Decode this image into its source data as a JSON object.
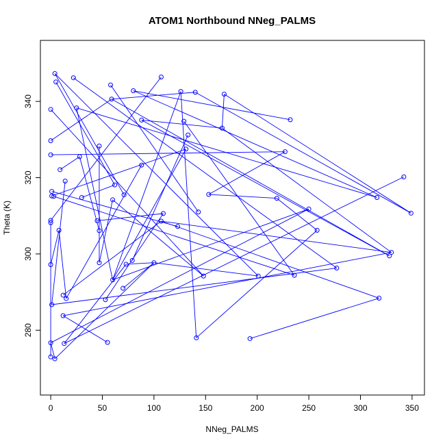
{
  "chart_data": {
    "type": "scatter",
    "title": "ATOM1 Northbound NNeg_PALMS",
    "xlabel": "NNeg_PALMS",
    "ylabel": "Theta (K)",
    "xlim": [
      -10,
      362
    ],
    "ylim": [
      263,
      356
    ],
    "xticks": [
      0,
      50,
      100,
      150,
      200,
      250,
      300,
      350
    ],
    "yticks": [
      280,
      300,
      320,
      340
    ],
    "grid": false,
    "legend": "none",
    "colors": {
      "series": "#0000ff",
      "axis": "#000000"
    },
    "series": [
      {
        "points": [
          [
            0,
            273.0
          ],
          [
            4,
            272.5
          ],
          [
            13,
            276.5
          ],
          [
            55,
            276.8
          ],
          [
            12,
            283.8
          ],
          [
            15,
            288.3
          ],
          [
            12,
            289.2
          ],
          [
            53,
            288.0
          ],
          [
            60,
            293.2
          ],
          [
            70,
            291.0
          ],
          [
            73,
            297.3
          ],
          [
            79,
            298.3
          ],
          [
            100,
            297.7
          ],
          [
            47,
            297.7
          ],
          [
            47,
            306.1
          ],
          [
            45,
            308.7
          ],
          [
            60,
            314.2
          ],
          [
            62,
            318.1
          ],
          [
            71,
            315.5
          ],
          [
            88,
            323.3
          ],
          [
            107,
            308.6
          ],
          [
            109,
            310.6
          ],
          [
            123,
            307.2
          ],
          [
            0,
            297.2
          ],
          [
            1,
            286.7
          ],
          [
            0,
            276.7
          ],
          [
            0,
            308.2
          ],
          [
            0,
            308.8
          ],
          [
            8,
            306.2
          ],
          [
            14,
            319.1
          ],
          [
            9,
            322.1
          ],
          [
            1,
            315.2
          ],
          [
            1,
            316.4
          ],
          [
            3,
            315.1
          ],
          [
            30,
            314.8
          ],
          [
            28,
            325.5
          ],
          [
            47,
            328.3
          ],
          [
            25,
            338.3
          ],
          [
            0,
            337.9
          ],
          [
            0,
            329.7
          ],
          [
            0,
            326.0
          ],
          [
            5,
            345.1
          ],
          [
            4,
            347.3
          ],
          [
            22,
            346.2
          ],
          [
            58,
            344.3
          ],
          [
            59,
            340.6
          ],
          [
            80,
            342.8
          ],
          [
            88,
            335.1
          ],
          [
            107,
            346.4
          ],
          [
            126,
            342.6
          ],
          [
            131,
            327.5
          ],
          [
            129,
            334.8
          ],
          [
            133,
            331.2
          ],
          [
            140,
            342.4
          ],
          [
            143,
            311.0
          ],
          [
            148,
            294.2
          ],
          [
            141,
            278.0
          ],
          [
            153,
            315.6
          ],
          [
            166,
            333.0
          ],
          [
            168,
            341.9
          ],
          [
            201,
            294.2
          ],
          [
            193,
            277.8
          ],
          [
            219,
            314.6
          ],
          [
            227,
            326.8
          ],
          [
            232,
            335.2
          ],
          [
            236,
            294.4
          ],
          [
            250,
            311.8
          ],
          [
            258,
            306.2
          ],
          [
            277,
            296.3
          ],
          [
            316,
            314.8
          ],
          [
            318,
            288.4
          ],
          [
            328,
            299.5
          ],
          [
            330,
            300.4
          ],
          [
            342,
            320.2
          ],
          [
            349,
            310.7
          ]
        ],
        "segments": [
          [
            0,
            273.0,
            0,
            308.2
          ],
          [
            0,
            308.8,
            107,
            346.4
          ],
          [
            0,
            326.0,
            227,
            326.8
          ],
          [
            0,
            329.7,
            59,
            340.6
          ],
          [
            0,
            337.9,
            148,
            294.2
          ],
          [
            0,
            297.2,
            8,
            306.2
          ],
          [
            1,
            286.7,
            14,
            319.1
          ],
          [
            1,
            315.2,
            131,
            327.5
          ],
          [
            1,
            316.4,
            123,
            307.2
          ],
          [
            3,
            315.1,
            236,
            294.4
          ],
          [
            4,
            272.5,
            0,
            276.7
          ],
          [
            4,
            272.5,
            100,
            297.7
          ],
          [
            5,
            345.1,
            62,
            318.1
          ],
          [
            4,
            347.3,
            71,
            315.5
          ],
          [
            4,
            347.3,
            201,
            294.2
          ],
          [
            8,
            306.2,
            15,
            288.3
          ],
          [
            9,
            322.1,
            28,
            325.5
          ],
          [
            12,
            289.2,
            107,
            308.6
          ],
          [
            12,
            283.8,
            55,
            276.8
          ],
          [
            13,
            276.5,
            73,
            297.3
          ],
          [
            15,
            288.3,
            88,
            323.3
          ],
          [
            22,
            346.2,
            277,
            296.3
          ],
          [
            25,
            338.3,
            60,
            293.2
          ],
          [
            28,
            325.5,
            47,
            306.1
          ],
          [
            30,
            314.8,
            62,
            318.1
          ],
          [
            45,
            308.7,
            109,
            310.6
          ],
          [
            47,
            328.3,
            47,
            297.7
          ],
          [
            47,
            297.7,
            60,
            314.2
          ],
          [
            53,
            288.0,
            109,
            310.6
          ],
          [
            58,
            344.3,
            143,
            311.0
          ],
          [
            59,
            340.6,
            328,
            299.5
          ],
          [
            60,
            293.2,
            131,
            327.5
          ],
          [
            60,
            293.2,
            126,
            342.6
          ],
          [
            70,
            291.0,
            100,
            297.7
          ],
          [
            73,
            297.3,
            100,
            297.7
          ],
          [
            79,
            298.3,
            133,
            331.2
          ],
          [
            80,
            342.8,
            316,
            314.8
          ],
          [
            88,
            335.1,
            166,
            333.0
          ],
          [
            100,
            297.7,
            201,
            294.2
          ],
          [
            107,
            308.6,
            318,
            288.4
          ],
          [
            107,
            308.6,
            330,
            300.4
          ],
          [
            126,
            342.6,
            141,
            278.0
          ],
          [
            129,
            334.8,
            236,
            294.4
          ],
          [
            140,
            342.4,
            59,
            340.6
          ],
          [
            141,
            278.0,
            258,
            306.2
          ],
          [
            148,
            294.2,
            60,
            314.2
          ],
          [
            153,
            315.6,
            219,
            314.6
          ],
          [
            153,
            315.6,
            227,
            326.8
          ],
          [
            166,
            333.0,
            330,
            300.4
          ],
          [
            168,
            341.9,
            349,
            310.7
          ],
          [
            168,
            341.9,
            166,
            333.0
          ],
          [
            193,
            277.8,
            318,
            288.4
          ],
          [
            219,
            314.6,
            258,
            306.2
          ],
          [
            232,
            335.2,
            80,
            342.8
          ],
          [
            250,
            311.8,
            60,
            293.2
          ],
          [
            250,
            311.8,
            0,
            276.7
          ],
          [
            277,
            296.3,
            1,
            286.7
          ],
          [
            316,
            314.8,
            25,
            338.3
          ],
          [
            328,
            299.5,
            88,
            335.1
          ],
          [
            330,
            300.4,
            12,
            283.8
          ],
          [
            342,
            320.2,
            13,
            276.5
          ],
          [
            349,
            310.7,
            140,
            342.4
          ]
        ]
      }
    ]
  }
}
